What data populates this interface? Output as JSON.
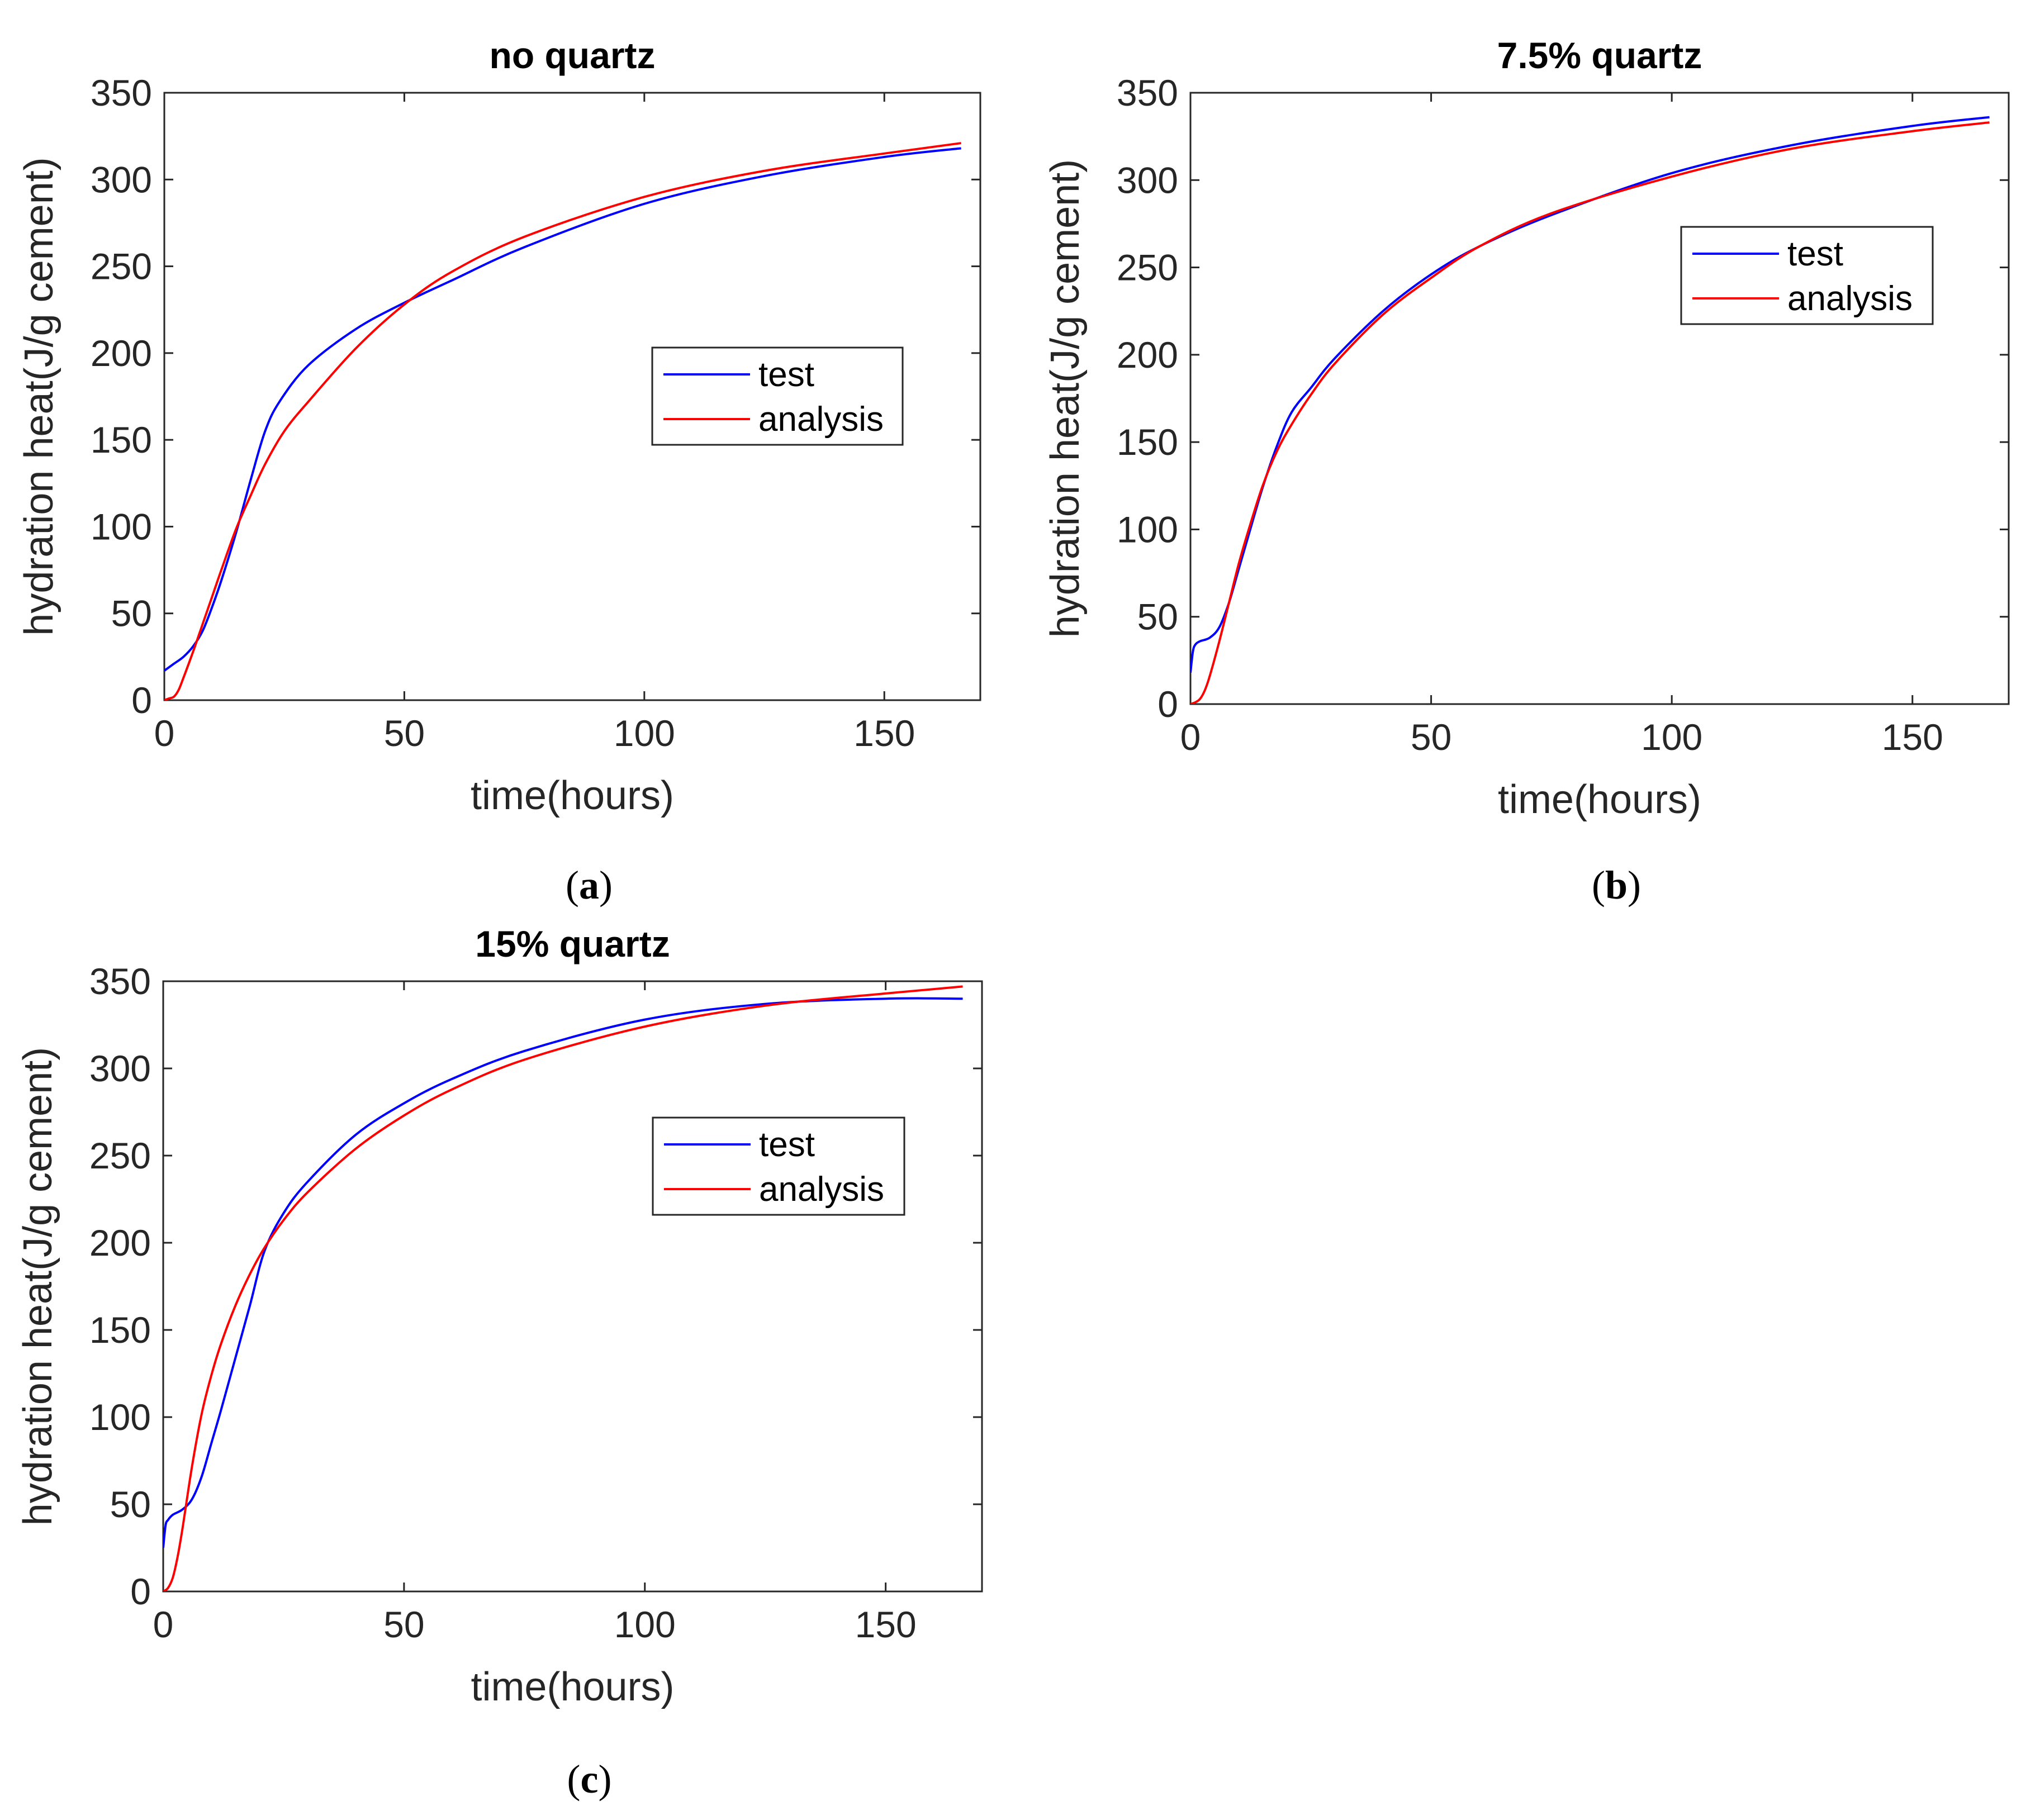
{
  "chart_data": [
    {
      "type": "line",
      "title": "no quartz",
      "caption": "a",
      "xlabel": "time(hours)",
      "ylabel": "hydration heat(J/g cement)",
      "xlim": [
        0,
        170
      ],
      "ylim": [
        0,
        350
      ],
      "xticks": [
        0,
        50,
        100,
        150
      ],
      "yticks": [
        0,
        50,
        100,
        150,
        200,
        250,
        300,
        350
      ],
      "legend": {
        "placement": "center-right"
      },
      "series": [
        {
          "name": "test",
          "color": "#0000ff",
          "x": [
            0,
            2,
            4,
            6,
            8,
            10,
            12,
            15,
            18,
            21,
            24,
            30,
            40,
            50,
            60,
            75,
            100,
            125,
            150,
            166
          ],
          "y": [
            17,
            21,
            25,
            31,
            40,
            54,
            70,
            97,
            127,
            155,
            172,
            193,
            214,
            229,
            242,
            261,
            286,
            302,
            313,
            318
          ]
        },
        {
          "name": "analysis",
          "color": "#ff0000",
          "x": [
            0,
            1,
            2,
            3,
            4,
            6,
            8,
            10,
            12,
            15,
            18,
            21,
            25,
            30,
            40,
            50,
            60,
            75,
            100,
            125,
            150,
            166
          ],
          "y": [
            0,
            1,
            2,
            6,
            13,
            28,
            44,
            60,
            76,
            99,
            118,
            136,
            155,
            172,
            203,
            228,
            247,
            267,
            290,
            305,
            315,
            321
          ]
        }
      ]
    },
    {
      "type": "line",
      "title": "7.5% quartz",
      "caption": "b",
      "xlabel": "time(hours)",
      "ylabel": "hydration heat(J/g cement)",
      "xlim": [
        0,
        170
      ],
      "ylim": [
        0,
        350
      ],
      "xticks": [
        0,
        50,
        100,
        150
      ],
      "yticks": [
        0,
        50,
        100,
        150,
        200,
        250,
        300,
        350
      ],
      "legend": {
        "placement": "top-right"
      },
      "series": [
        {
          "name": "test",
          "color": "#0000ff",
          "x": [
            0,
            0.5,
            1,
            2,
            4,
            6,
            8,
            10,
            12,
            15,
            18,
            21,
            25,
            30,
            40,
            50,
            60,
            75,
            100,
            125,
            150,
            166
          ],
          "y": [
            18,
            30,
            34,
            36,
            38,
            44,
            58,
            77,
            96,
            124,
            148,
            167,
            181,
            198,
            225,
            246,
            262,
            280,
            304,
            320,
            331,
            336
          ]
        },
        {
          "name": "analysis",
          "color": "#ff0000",
          "x": [
            0,
            1,
            2,
            3,
            4,
            6,
            8,
            10,
            12,
            15,
            18,
            21,
            25,
            30,
            40,
            50,
            60,
            75,
            100,
            125,
            150,
            166
          ],
          "y": [
            0,
            1,
            3,
            8,
            16,
            36,
            58,
            80,
            99,
            125,
            145,
            160,
            177,
            195,
            223,
            244,
            262,
            281,
            302,
            318,
            328,
            333
          ]
        }
      ]
    },
    {
      "type": "line",
      "title": "15% quartz",
      "caption": "c",
      "xlabel": "time(hours)",
      "ylabel": "hydration heat(J/g cement)",
      "xlim": [
        0,
        170
      ],
      "ylim": [
        0,
        350
      ],
      "xticks": [
        0,
        50,
        100,
        150
      ],
      "yticks": [
        0,
        50,
        100,
        150,
        200,
        250,
        300,
        350
      ],
      "legend": {
        "placement": "top-right"
      },
      "series": [
        {
          "name": "test",
          "color": "#0000ff",
          "x": [
            0,
            0.5,
            1,
            2,
            4,
            6,
            8,
            10,
            12,
            15,
            18,
            21,
            25,
            30,
            40,
            50,
            60,
            75,
            100,
            125,
            150,
            166
          ],
          "y": [
            25,
            38,
            41,
            44,
            47,
            53,
            66,
            85,
            104,
            134,
            164,
            195,
            217,
            235,
            262,
            280,
            294,
            310,
            328,
            337,
            340,
            340
          ]
        },
        {
          "name": "analysis",
          "color": "#ff0000",
          "x": [
            0,
            1,
            2,
            3,
            4,
            6,
            8,
            10,
            12,
            15,
            18,
            21,
            25,
            30,
            40,
            50,
            60,
            75,
            100,
            125,
            150,
            166
          ],
          "y": [
            0,
            2,
            8,
            20,
            36,
            72,
            102,
            124,
            142,
            164,
            182,
            197,
            213,
            229,
            254,
            273,
            288,
            305,
            324,
            336,
            343,
            347
          ]
        }
      ]
    }
  ]
}
